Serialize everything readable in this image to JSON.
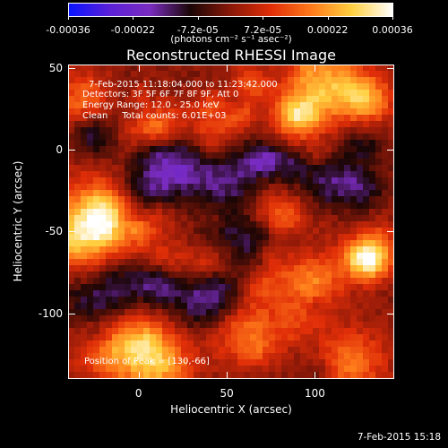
{
  "chart_data": {
    "type": "heatmap",
    "title": "Reconstructed RHESSI Image",
    "xlabel": "Heliocentric X (arcsec)",
    "ylabel": "Heliocentric Y (arcsec)",
    "xlim": [
      -40,
      145
    ],
    "ylim": [
      -140,
      52
    ],
    "xticks": [
      "0",
      "50",
      "100"
    ],
    "yticks": [
      "50",
      "0",
      "-50",
      "-100"
    ],
    "colorbar": {
      "ticks": [
        "-0.00036",
        "-0.00022",
        "-7.2e-05",
        "7.2e-05",
        "0.00022",
        "0.00036"
      ],
      "units": "(photons cm⁻² s⁻¹ asec⁻²)",
      "range": [
        -0.00036,
        0.00036
      ],
      "colormap": [
        "#0a14ff",
        "#5a20d8",
        "#7a2cc0",
        "#1a0606",
        "#8a1808",
        "#e02e08",
        "#ff7a1a",
        "#ffd040",
        "#ffffff"
      ]
    },
    "annotations": [
      "7-Feb-2015 11:18:04.000 to 11:23:42.000",
      "Detectors: 3F 5F 6F 7F 8F 9F, Att 0",
      "Energy Range: 12.0 - 25.0 keV",
      "Clean     Total counts: 6.01E+03"
    ],
    "peak": {
      "label": "Position of Peak = [130,-66]",
      "x": 130,
      "y": -66
    }
  },
  "footer": "7-Feb-2015 15:18"
}
